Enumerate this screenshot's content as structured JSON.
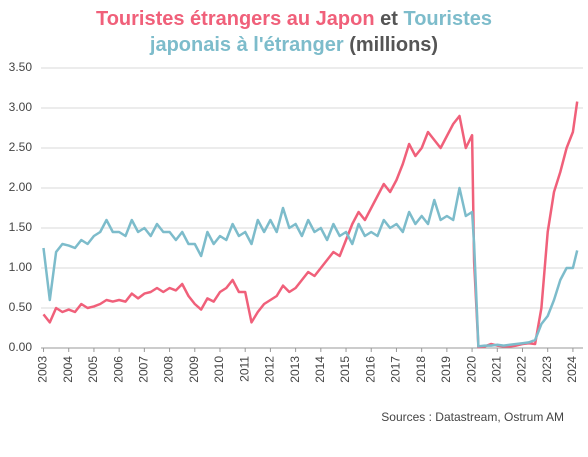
{
  "chart_data": {
    "type": "line",
    "title_connector": "et",
    "title_unit": "(millions)",
    "source": "Sources : Datastream, Ostrum AM",
    "xlim": [
      2002.9,
      2024.4
    ],
    "xticks": [
      2003,
      2004,
      2005,
      2006,
      2007,
      2008,
      2009,
      2010,
      2011,
      2012,
      2013,
      2014,
      2015,
      2016,
      2017,
      2018,
      2019,
      2020,
      2021,
      2022,
      2023,
      2024
    ],
    "ylim": [
      0,
      3.5
    ],
    "yticks": [
      {
        "value": 0,
        "label": "0.00"
      },
      {
        "value": 0.5,
        "label": "0.50"
      },
      {
        "value": 1,
        "label": "1.00"
      },
      {
        "value": 1.5,
        "label": "1.50"
      },
      {
        "value": 2,
        "label": "2.00"
      },
      {
        "value": 2.5,
        "label": "2.50"
      },
      {
        "value": 3,
        "label": "3.00"
      },
      {
        "value": 3.5,
        "label": "3.50"
      }
    ],
    "grid": true,
    "x": [
      2003.0,
      2003.25,
      2003.5,
      2003.75,
      2004.0,
      2004.25,
      2004.5,
      2004.75,
      2005.0,
      2005.25,
      2005.5,
      2005.75,
      2006.0,
      2006.25,
      2006.5,
      2006.75,
      2007.0,
      2007.25,
      2007.5,
      2007.75,
      2008.0,
      2008.25,
      2008.5,
      2008.75,
      2009.0,
      2009.25,
      2009.5,
      2009.75,
      2010.0,
      2010.25,
      2010.5,
      2010.75,
      2011.0,
      2011.25,
      2011.5,
      2011.75,
      2012.0,
      2012.25,
      2012.5,
      2012.75,
      2013.0,
      2013.25,
      2013.5,
      2013.75,
      2014.0,
      2014.25,
      2014.5,
      2014.75,
      2015.0,
      2015.25,
      2015.5,
      2015.75,
      2016.0,
      2016.25,
      2016.5,
      2016.75,
      2017.0,
      2017.25,
      2017.5,
      2017.75,
      2018.0,
      2018.25,
      2018.5,
      2018.75,
      2019.0,
      2019.25,
      2019.5,
      2019.75,
      2020.0,
      2020.08,
      2020.25,
      2020.5,
      2020.75,
      2021.0,
      2021.25,
      2021.5,
      2021.75,
      2022.0,
      2022.25,
      2022.5,
      2022.75,
      2023.0,
      2023.25,
      2023.5,
      2023.75,
      2024.0,
      2024.17
    ],
    "series": [
      {
        "name": "Touristes étrangers au Japon",
        "color": "#f0607a",
        "values": [
          0.42,
          0.32,
          0.5,
          0.45,
          0.48,
          0.45,
          0.55,
          0.5,
          0.52,
          0.55,
          0.6,
          0.58,
          0.6,
          0.58,
          0.68,
          0.62,
          0.68,
          0.7,
          0.75,
          0.7,
          0.75,
          0.72,
          0.8,
          0.65,
          0.55,
          0.48,
          0.62,
          0.58,
          0.7,
          0.75,
          0.85,
          0.7,
          0.7,
          0.32,
          0.45,
          0.55,
          0.6,
          0.65,
          0.78,
          0.7,
          0.75,
          0.85,
          0.95,
          0.9,
          1.0,
          1.1,
          1.2,
          1.15,
          1.35,
          1.55,
          1.7,
          1.6,
          1.75,
          1.9,
          2.05,
          1.95,
          2.1,
          2.3,
          2.55,
          2.4,
          2.5,
          2.7,
          2.6,
          2.5,
          2.65,
          2.8,
          2.9,
          2.5,
          2.66,
          1.08,
          0.01,
          0.02,
          0.05,
          0.03,
          0.02,
          0.02,
          0.03,
          0.05,
          0.06,
          0.05,
          0.5,
          1.45,
          1.95,
          2.2,
          2.5,
          2.7,
          3.08
        ]
      },
      {
        "name": "Touristes japonais à l'étranger",
        "color": "#7dbccb",
        "values": [
          1.25,
          0.6,
          1.2,
          1.3,
          1.28,
          1.25,
          1.35,
          1.3,
          1.4,
          1.45,
          1.6,
          1.45,
          1.45,
          1.4,
          1.6,
          1.45,
          1.5,
          1.4,
          1.55,
          1.45,
          1.45,
          1.35,
          1.45,
          1.3,
          1.3,
          1.15,
          1.45,
          1.3,
          1.4,
          1.35,
          1.55,
          1.4,
          1.45,
          1.3,
          1.6,
          1.45,
          1.6,
          1.45,
          1.75,
          1.5,
          1.55,
          1.4,
          1.6,
          1.45,
          1.5,
          1.35,
          1.55,
          1.4,
          1.45,
          1.3,
          1.55,
          1.4,
          1.45,
          1.4,
          1.6,
          1.5,
          1.55,
          1.45,
          1.7,
          1.55,
          1.65,
          1.55,
          1.85,
          1.6,
          1.65,
          1.6,
          2.0,
          1.65,
          1.7,
          1.3,
          0.02,
          0.03,
          0.03,
          0.04,
          0.03,
          0.04,
          0.05,
          0.06,
          0.07,
          0.1,
          0.3,
          0.4,
          0.6,
          0.85,
          1.0,
          1.0,
          1.22
        ]
      }
    ]
  }
}
